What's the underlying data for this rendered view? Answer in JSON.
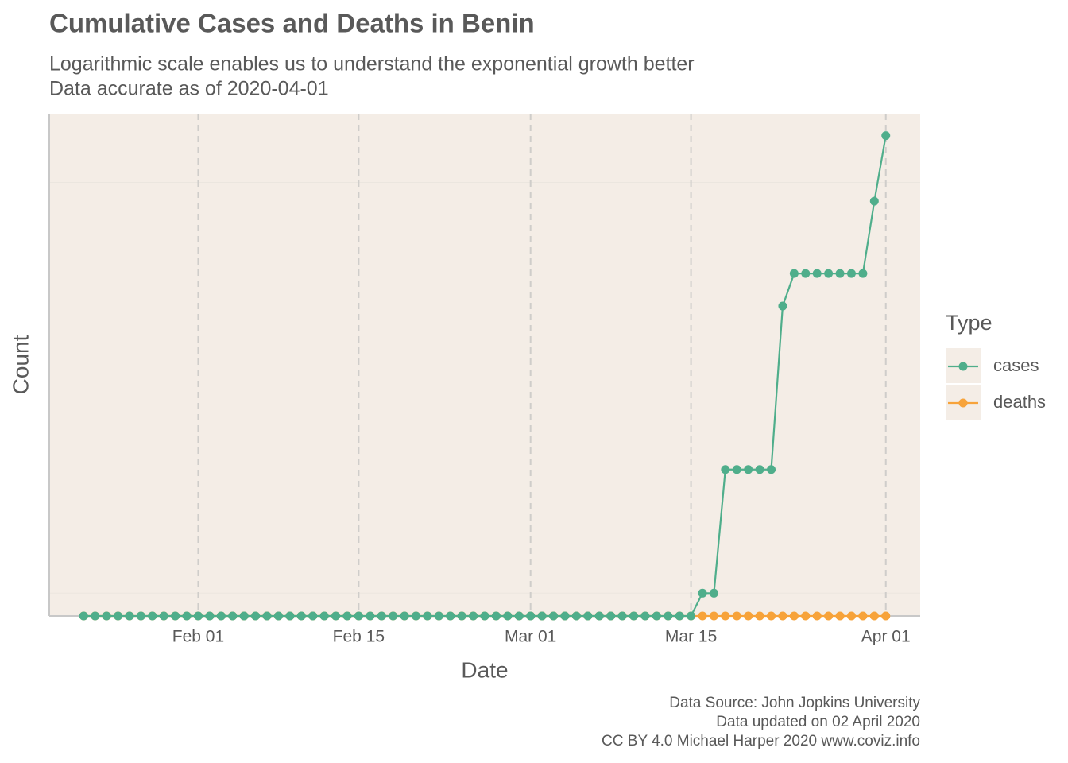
{
  "chart_data": {
    "type": "line",
    "title": "Cumulative Cases and Deaths in Benin",
    "subtitle": [
      "Logarithmic scale enables us to understand the exponential growth better",
      "Data accurate as of 2020-04-01"
    ],
    "x_label": "Date",
    "y_label": "Count",
    "caption": [
      "Data Source: John Jopkins University",
      "Data updated on 02 April 2020",
      "CC BY 4.0 Michael Harper 2020 www.coviz.info"
    ],
    "legend_title": "Type",
    "x": [
      "2020-01-22",
      "2020-01-23",
      "2020-01-24",
      "2020-01-25",
      "2020-01-26",
      "2020-01-27",
      "2020-01-28",
      "2020-01-29",
      "2020-01-30",
      "2020-01-31",
      "2020-02-01",
      "2020-02-02",
      "2020-02-03",
      "2020-02-04",
      "2020-02-05",
      "2020-02-06",
      "2020-02-07",
      "2020-02-08",
      "2020-02-09",
      "2020-02-10",
      "2020-02-11",
      "2020-02-12",
      "2020-02-13",
      "2020-02-14",
      "2020-02-15",
      "2020-02-16",
      "2020-02-17",
      "2020-02-18",
      "2020-02-19",
      "2020-02-20",
      "2020-02-21",
      "2020-02-22",
      "2020-02-23",
      "2020-02-24",
      "2020-02-25",
      "2020-02-26",
      "2020-02-27",
      "2020-02-28",
      "2020-02-29",
      "2020-03-01",
      "2020-03-02",
      "2020-03-03",
      "2020-03-04",
      "2020-03-05",
      "2020-03-06",
      "2020-03-07",
      "2020-03-08",
      "2020-03-09",
      "2020-03-10",
      "2020-03-11",
      "2020-03-12",
      "2020-03-13",
      "2020-03-14",
      "2020-03-15",
      "2020-03-16",
      "2020-03-17",
      "2020-03-18",
      "2020-03-19",
      "2020-03-20",
      "2020-03-21",
      "2020-03-22",
      "2020-03-23",
      "2020-03-24",
      "2020-03-25",
      "2020-03-26",
      "2020-03-27",
      "2020-03-28",
      "2020-03-29",
      "2020-03-30",
      "2020-03-31",
      "2020-04-01"
    ],
    "series": [
      {
        "name": "cases",
        "color": "#4fae8b",
        "values": [
          0,
          0,
          0,
          0,
          0,
          0,
          0,
          0,
          0,
          0,
          0,
          0,
          0,
          0,
          0,
          0,
          0,
          0,
          0,
          0,
          0,
          0,
          0,
          0,
          0,
          0,
          0,
          0,
          0,
          0,
          0,
          0,
          0,
          0,
          0,
          0,
          0,
          0,
          0,
          0,
          0,
          0,
          0,
          0,
          0,
          0,
          0,
          0,
          0,
          0,
          0,
          0,
          0,
          0,
          1,
          1,
          2,
          2,
          2,
          2,
          2,
          5,
          6,
          6,
          6,
          6,
          6,
          6,
          6,
          9,
          13
        ]
      },
      {
        "name": "deaths",
        "color": "#f7a33a",
        "values": [
          0,
          0,
          0,
          0,
          0,
          0,
          0,
          0,
          0,
          0,
          0,
          0,
          0,
          0,
          0,
          0,
          0,
          0,
          0,
          0,
          0,
          0,
          0,
          0,
          0,
          0,
          0,
          0,
          0,
          0,
          0,
          0,
          0,
          0,
          0,
          0,
          0,
          0,
          0,
          0,
          0,
          0,
          0,
          0,
          0,
          0,
          0,
          0,
          0,
          0,
          0,
          0,
          0,
          0,
          0,
          0,
          0,
          0,
          0,
          0,
          0,
          0,
          0,
          0,
          0,
          0,
          0,
          0,
          0,
          0,
          0
        ]
      }
    ],
    "xlim": [
      "2020-01-19",
      "2020-04-04"
    ],
    "xticks": [
      {
        "value": "2020-02-01",
        "label": "Feb 01"
      },
      {
        "value": "2020-02-15",
        "label": "Feb 15"
      },
      {
        "value": "2020-03-01",
        "label": "Mar 01"
      },
      {
        "value": "2020-03-15",
        "label": "Mar 15"
      },
      {
        "value": "2020-04-01",
        "label": "Apr 01"
      }
    ],
    "ylim": [
      0.88,
      14.7
    ],
    "yticks": [
      1,
      10
    ],
    "log_y": true,
    "grid": true
  }
}
